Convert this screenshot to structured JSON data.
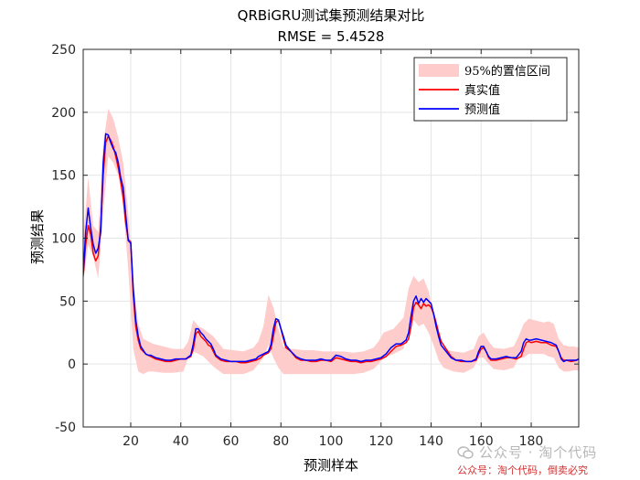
{
  "chart_data": {
    "type": "line",
    "title": "QRBiGRU测试集预测结果对比",
    "subtitle": "RMSE = 5.4528",
    "xlabel": "预测样本",
    "ylabel": "预测结果",
    "xlim": [
      1,
      199
    ],
    "ylim": [
      -50,
      250
    ],
    "xticks": [
      20,
      40,
      60,
      80,
      100,
      120,
      140,
      160,
      180
    ],
    "yticks": [
      -50,
      0,
      50,
      100,
      150,
      200,
      250
    ],
    "grid": true,
    "legend": {
      "placement": "top-right",
      "entries": [
        {
          "label": "95%的置信区间",
          "color": "#ffcccc",
          "kind": "band"
        },
        {
          "label": "真实值",
          "color": "#ff0000",
          "kind": "line"
        },
        {
          "label": "预测值",
          "color": "#0000ff",
          "kind": "line"
        }
      ]
    },
    "series": [
      {
        "name": "95%的置信区间",
        "color": "#ffcccc",
        "x": [
          1,
          3,
          5,
          7,
          9,
          11,
          13,
          15,
          17,
          19,
          21,
          23,
          25,
          27,
          29,
          33,
          37,
          41,
          43,
          45,
          47,
          49,
          53,
          57,
          61,
          65,
          69,
          71,
          73,
          75,
          77,
          79,
          81,
          83,
          85,
          89,
          93,
          97,
          101,
          105,
          109,
          113,
          117,
          119,
          121,
          125,
          129,
          131,
          133,
          135,
          137,
          139,
          141,
          143,
          145,
          149,
          153,
          157,
          159,
          161,
          163,
          165,
          169,
          173,
          175,
          177,
          179,
          181,
          185,
          187,
          189,
          191,
          193,
          195,
          197,
          199
        ],
        "upper": [
          100,
          148,
          110,
          105,
          175,
          203,
          195,
          180,
          160,
          120,
          65,
          32,
          20,
          18,
          16,
          14,
          12,
          12,
          18,
          35,
          30,
          28,
          22,
          12,
          11,
          10,
          13,
          18,
          30,
          55,
          45,
          28,
          14,
          12,
          12,
          11,
          11,
          10,
          10,
          10,
          9,
          10,
          13,
          18,
          25,
          28,
          37,
          60,
          70,
          65,
          68,
          58,
          40,
          22,
          12,
          10,
          9,
          12,
          22,
          25,
          18,
          13,
          12,
          14,
          22,
          32,
          36,
          35,
          33,
          34,
          32,
          20,
          15,
          14,
          14,
          13
        ],
        "lower": [
          65,
          95,
          85,
          68,
          120,
          165,
          160,
          150,
          125,
          75,
          12,
          -6,
          -8,
          -6,
          -6,
          -7,
          -7,
          -6,
          5,
          10,
          8,
          6,
          -2,
          -8,
          -8,
          -8,
          -5,
          0,
          5,
          15,
          5,
          -3,
          -8,
          -8,
          -8,
          -8,
          -8,
          -8,
          -8,
          -8,
          -8,
          -7,
          -4,
          0,
          5,
          8,
          12,
          30,
          35,
          30,
          32,
          25,
          15,
          3,
          -3,
          -6,
          -7,
          -3,
          5,
          5,
          0,
          -4,
          -5,
          -3,
          5,
          5,
          8,
          8,
          8,
          6,
          5,
          -3,
          -6,
          -6,
          -5,
          -5
        ]
      },
      {
        "name": "真实值",
        "color": "#ff0000",
        "x": [
          1,
          2,
          3,
          4,
          5,
          6,
          7,
          8,
          9,
          10,
          11,
          12,
          13,
          14,
          15,
          16,
          17,
          18,
          19,
          20,
          21,
          22,
          23,
          24,
          25,
          26,
          27,
          28,
          29,
          30,
          32,
          34,
          36,
          38,
          40,
          42,
          44,
          45,
          46,
          47,
          48,
          49,
          50,
          51,
          52,
          53,
          54,
          56,
          58,
          60,
          62,
          64,
          66,
          68,
          70,
          71,
          72,
          73,
          74,
          75,
          76,
          77,
          78,
          79,
          80,
          81,
          82,
          84,
          86,
          88,
          90,
          92,
          94,
          96,
          98,
          100,
          102,
          104,
          106,
          108,
          110,
          112,
          114,
          116,
          118,
          120,
          122,
          124,
          126,
          128,
          130,
          131,
          132,
          133,
          134,
          135,
          136,
          137,
          138,
          139,
          140,
          141,
          142,
          143,
          144,
          146,
          148,
          150,
          152,
          154,
          156,
          158,
          159,
          160,
          161,
          162,
          163,
          164,
          166,
          168,
          170,
          172,
          174,
          176,
          177,
          178,
          179,
          180,
          182,
          184,
          186,
          188,
          190,
          191,
          192,
          193,
          194,
          196,
          198,
          199
        ],
        "values": [
          70,
          95,
          110,
          103,
          88,
          82,
          86,
          110,
          150,
          176,
          181,
          178,
          173,
          165,
          156,
          145,
          132,
          112,
          99,
          97,
          55,
          30,
          19,
          12,
          10,
          8,
          7,
          6,
          5,
          4,
          3,
          2,
          2,
          3,
          4,
          4,
          6,
          12,
          24,
          26,
          22,
          20,
          18,
          15,
          14,
          10,
          6,
          3,
          2,
          2,
          2,
          1,
          1,
          2,
          3,
          4,
          5,
          7,
          8,
          9,
          12,
          22,
          33,
          35,
          28,
          20,
          13,
          10,
          5,
          3,
          3,
          2,
          2,
          3,
          3,
          2,
          5,
          4,
          3,
          2,
          2,
          1,
          2,
          2,
          3,
          4,
          6,
          10,
          14,
          15,
          17,
          20,
          30,
          45,
          49,
          47,
          44,
          48,
          46,
          47,
          45,
          40,
          33,
          25,
          18,
          12,
          6,
          3,
          2,
          2,
          2,
          3,
          8,
          12,
          13,
          10,
          5,
          3,
          3,
          4,
          5,
          5,
          4,
          6,
          12,
          17,
          18,
          17,
          18,
          17,
          17,
          15,
          14,
          10,
          5,
          3,
          3,
          2,
          3,
          4
        ],
        "upper": [],
        "lower": []
      },
      {
        "name": "预测值",
        "color": "#0000ff",
        "x": [
          1,
          2,
          3,
          4,
          5,
          6,
          7,
          8,
          9,
          10,
          11,
          12,
          13,
          14,
          15,
          16,
          17,
          18,
          19,
          20,
          21,
          22,
          23,
          24,
          25,
          26,
          27,
          28,
          29,
          30,
          32,
          34,
          36,
          38,
          40,
          42,
          44,
          45,
          46,
          47,
          48,
          49,
          50,
          51,
          52,
          53,
          54,
          56,
          58,
          60,
          62,
          64,
          66,
          68,
          70,
          71,
          72,
          73,
          74,
          75,
          76,
          77,
          78,
          79,
          80,
          81,
          82,
          84,
          86,
          88,
          90,
          92,
          94,
          96,
          98,
          100,
          102,
          104,
          106,
          108,
          110,
          112,
          114,
          116,
          118,
          120,
          122,
          124,
          126,
          128,
          130,
          131,
          132,
          133,
          134,
          135,
          136,
          137,
          138,
          139,
          140,
          141,
          142,
          143,
          144,
          146,
          148,
          150,
          152,
          154,
          156,
          158,
          159,
          160,
          161,
          162,
          163,
          164,
          166,
          168,
          170,
          172,
          174,
          176,
          177,
          178,
          179,
          180,
          182,
          184,
          186,
          188,
          190,
          191,
          192,
          193,
          194,
          196,
          198,
          199
        ],
        "values": [
          72,
          105,
          124,
          108,
          95,
          88,
          92,
          105,
          160,
          183,
          182,
          176,
          171,
          168,
          160,
          148,
          140,
          118,
          98,
          96,
          60,
          35,
          22,
          14,
          11,
          8,
          7,
          7,
          6,
          5,
          4,
          3,
          3,
          4,
          4,
          4,
          7,
          16,
          28,
          28,
          25,
          23,
          20,
          18,
          16,
          12,
          7,
          4,
          3,
          2,
          2,
          2,
          2,
          3,
          4,
          6,
          7,
          8,
          9,
          10,
          15,
          28,
          36,
          35,
          28,
          22,
          15,
          10,
          6,
          4,
          3,
          3,
          3,
          4,
          3,
          3,
          7,
          6,
          4,
          3,
          3,
          2,
          3,
          3,
          4,
          5,
          8,
          13,
          16,
          16,
          19,
          25,
          38,
          50,
          54,
          48,
          52,
          49,
          52,
          50,
          48,
          40,
          30,
          22,
          15,
          10,
          5,
          3,
          3,
          2,
          2,
          4,
          10,
          14,
          14,
          10,
          6,
          4,
          4,
          5,
          6,
          5,
          5,
          10,
          17,
          20,
          19,
          19,
          20,
          19,
          18,
          17,
          15,
          10,
          4,
          2,
          3,
          3,
          3,
          4
        ],
        "upper": [],
        "lower": []
      }
    ]
  },
  "watermark": {
    "line1": "公众号 · 淘个代码",
    "line2": "公众号：淘个代码，倒卖必究"
  },
  "colors": {
    "grid": "#e5e5e5",
    "axis": "#262626",
    "band": "#ffcccc",
    "true_line": "#ff0000",
    "pred_line": "#0000ff"
  }
}
